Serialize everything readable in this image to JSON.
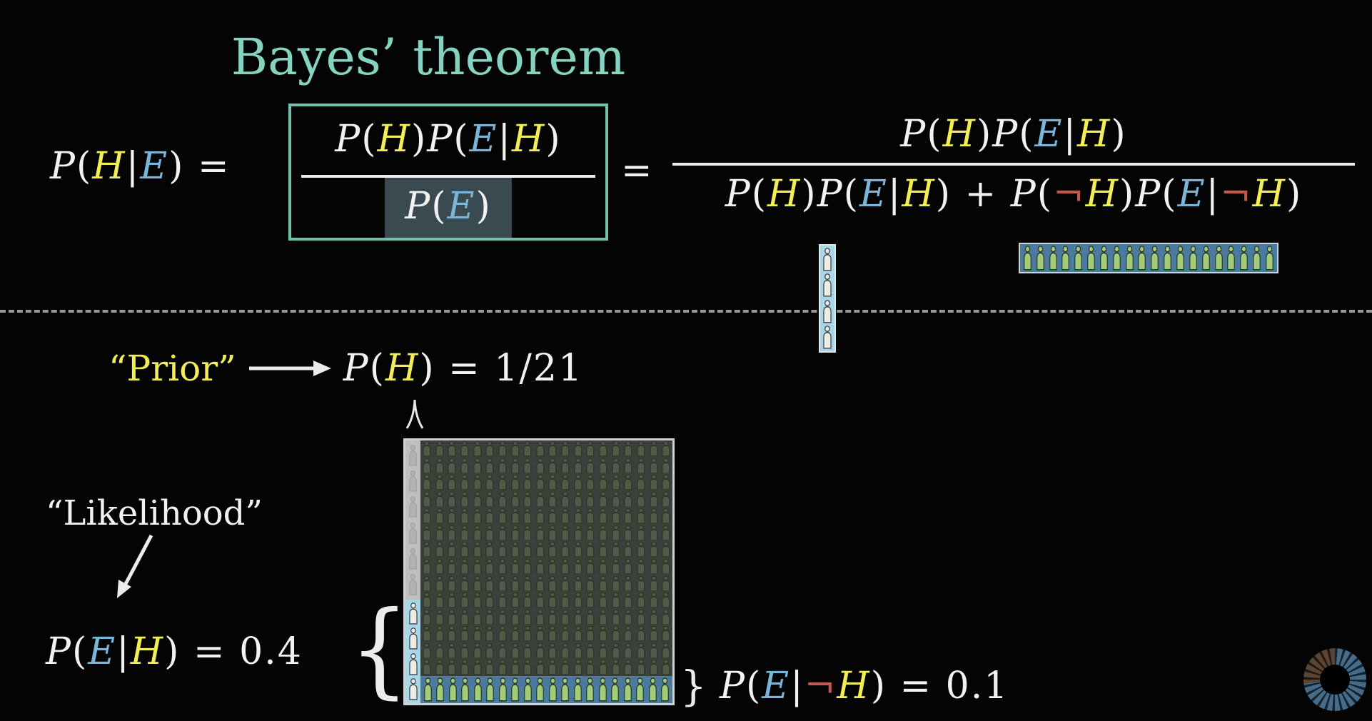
{
  "title": "Bayes’ theorem",
  "labels": {
    "prior": "“Prior”",
    "likelihood": "“Likelihood”"
  },
  "colors": {
    "yellow": "#f3ee55",
    "blue": "#7cb5da",
    "red": "#c05b4d",
    "teal_title": "#85d3c1",
    "box_border_teal": "#6ec3ae",
    "denominator_highlight": "#394b50",
    "text": "#f2f2f2"
  },
  "math": {
    "equals": "=",
    "lhs": [
      {
        "t": "P",
        "i": true
      },
      {
        "t": "("
      },
      {
        "t": "H",
        "c": "yellow",
        "i": true
      },
      {
        "t": "|"
      },
      {
        "t": "E",
        "c": "blue",
        "i": true
      },
      {
        "t": ")"
      },
      {
        "t": " = "
      }
    ],
    "box_numerator": [
      {
        "t": "P",
        "i": true
      },
      {
        "t": "("
      },
      {
        "t": "H",
        "c": "yellow",
        "i": true
      },
      {
        "t": ")"
      },
      {
        "t": "P",
        "i": true
      },
      {
        "t": "("
      },
      {
        "t": "E",
        "c": "blue",
        "i": true
      },
      {
        "t": "|"
      },
      {
        "t": "H",
        "c": "yellow",
        "i": true
      },
      {
        "t": ")"
      }
    ],
    "box_denominator": [
      {
        "t": "P",
        "i": true
      },
      {
        "t": "("
      },
      {
        "t": "E",
        "c": "blue",
        "i": true
      },
      {
        "t": ")"
      }
    ],
    "rhs_numerator": [
      {
        "t": "P",
        "i": true
      },
      {
        "t": "("
      },
      {
        "t": "H",
        "c": "yellow",
        "i": true
      },
      {
        "t": ")"
      },
      {
        "t": "P",
        "i": true
      },
      {
        "t": "("
      },
      {
        "t": "E",
        "c": "blue",
        "i": true
      },
      {
        "t": "|"
      },
      {
        "t": "H",
        "c": "yellow",
        "i": true
      },
      {
        "t": ")"
      }
    ],
    "rhs_denominator": [
      {
        "t": "P",
        "i": true
      },
      {
        "t": "("
      },
      {
        "t": "H",
        "c": "yellow",
        "i": true
      },
      {
        "t": ")"
      },
      {
        "t": "P",
        "i": true
      },
      {
        "t": "("
      },
      {
        "t": "E",
        "c": "blue",
        "i": true
      },
      {
        "t": "|"
      },
      {
        "t": "H",
        "c": "yellow",
        "i": true
      },
      {
        "t": ")"
      },
      {
        "t": " + "
      },
      {
        "t": "P",
        "i": true
      },
      {
        "t": "("
      },
      {
        "t": "¬",
        "c": "red"
      },
      {
        "t": "H",
        "c": "yellow",
        "i": true
      },
      {
        "t": ")"
      },
      {
        "t": "P",
        "i": true
      },
      {
        "t": "("
      },
      {
        "t": "E",
        "c": "blue",
        "i": true
      },
      {
        "t": "|"
      },
      {
        "t": "¬",
        "c": "red"
      },
      {
        "t": "H",
        "c": "yellow",
        "i": true
      },
      {
        "t": ")"
      }
    ],
    "prior_formula": [
      {
        "t": "P",
        "i": true
      },
      {
        "t": "("
      },
      {
        "t": "H",
        "c": "yellow",
        "i": true
      },
      {
        "t": ")"
      },
      {
        "t": " = 1/21"
      }
    ],
    "likelihood_formula": [
      {
        "t": "P",
        "i": true
      },
      {
        "t": "("
      },
      {
        "t": "E",
        "c": "blue",
        "i": true
      },
      {
        "t": "|"
      },
      {
        "t": "H",
        "c": "yellow",
        "i": true
      },
      {
        "t": ")"
      },
      {
        "t": " = 0.4"
      }
    ],
    "evidence_formula": [
      {
        "t": "P",
        "i": true
      },
      {
        "t": "("
      },
      {
        "t": "E",
        "c": "blue",
        "i": true
      },
      {
        "t": "|"
      },
      {
        "t": "¬",
        "c": "red"
      },
      {
        "t": "H",
        "c": "yellow",
        "i": true
      },
      {
        "t": ")"
      },
      {
        "t": " = 0.1"
      }
    ],
    "brace_left": "{",
    "brace_right": "}"
  },
  "diagram": {
    "grid": {
      "faint_rows": 14,
      "faint_cols": 20,
      "left_gray_people": 6,
      "left_blue_people": 4,
      "bottom_green_people": 20
    },
    "strips": {
      "vertical_people": 4,
      "horizontal_people": 20
    },
    "person_colors": {
      "bright_green_fill": "#a2cb7a",
      "bright_green_outline": "#2a3823",
      "faint_green_fill": "#525c48",
      "faint_green_outline": "#2c332a",
      "white_fill": "#efece6",
      "white_outline": "#3a4750",
      "faint_gray_fill": "#b0b0b0",
      "faint_gray_outline": "#9c9c9c"
    },
    "surface_colors": {
      "strip_light_blue": "#a9d7e6",
      "row_steel_blue": "#4a7b9e",
      "grid_main_dark": "#3b413a",
      "left_gray": "#bfbfbf",
      "grid_border": "#d0d0d0"
    }
  }
}
